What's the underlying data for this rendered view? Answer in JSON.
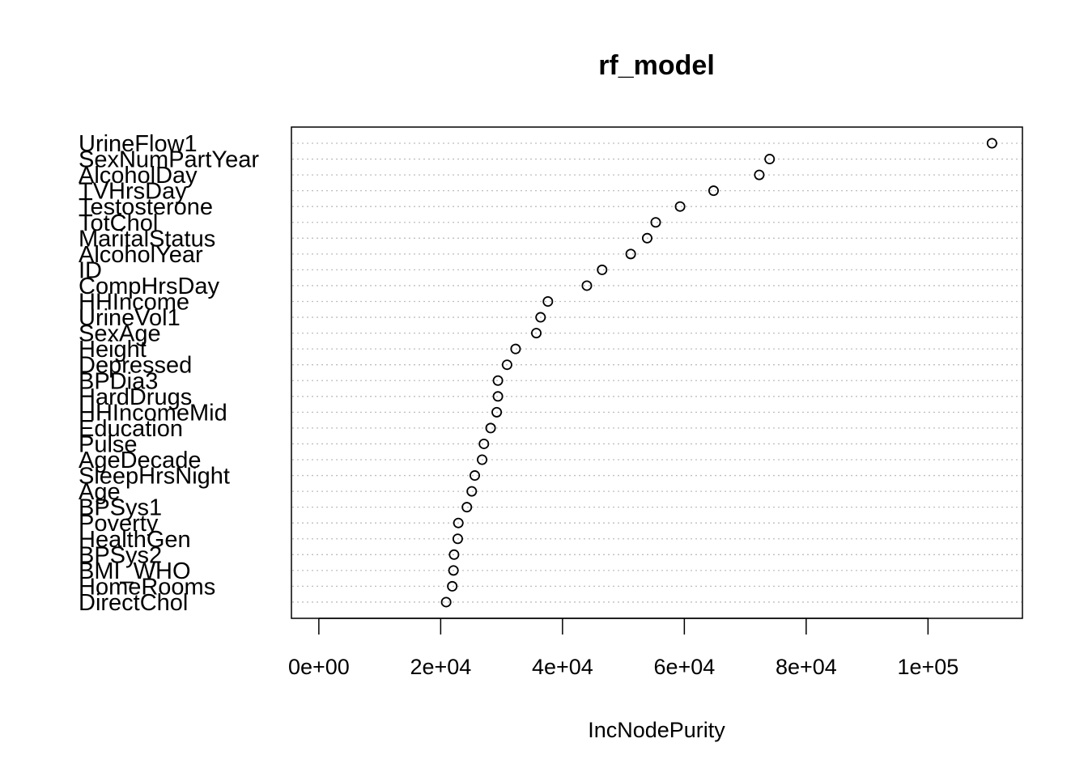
{
  "chart_data": {
    "type": "scatter",
    "title": "rf_model",
    "xlabel": "IncNodePurity",
    "ylabel": "",
    "xlim": [
      -4500,
      115500
    ],
    "xticks": [
      "0e+00",
      "2e+04",
      "4e+04",
      "6e+04",
      "8e+04",
      "1e+05"
    ],
    "xtick_values": [
      0,
      20000,
      40000,
      60000,
      80000,
      100000
    ],
    "grid": "dotted horizontal lines",
    "legend": "none",
    "point_style": "open circle",
    "colors": {
      "marker": "#000000",
      "grid": "#bebebe",
      "frame": "#000000"
    },
    "variables": [
      "UrineFlow1",
      "SexNumPartYear",
      "AlcoholDay",
      "TVHrsDay",
      "Testosterone",
      "TotChol",
      "MaritalStatus",
      "AlcoholYear",
      "ID",
      "CompHrsDay",
      "HHIncome",
      "UrineVol1",
      "SexAge",
      "Height",
      "Depressed",
      "BPDia3",
      "HardDrugs",
      "HHIncomeMid",
      "Education",
      "Pulse",
      "AgeDecade",
      "SleepHrsNight",
      "Age",
      "BPSys1",
      "Poverty",
      "HealthGen",
      "BPSys2",
      "BMI_WHO",
      "HomeRooms",
      "DirectChol"
    ],
    "values": [
      110500,
      74000,
      72300,
      64800,
      59300,
      55300,
      53900,
      51200,
      46500,
      44000,
      37600,
      36400,
      35700,
      32300,
      30900,
      29400,
      29400,
      29200,
      28200,
      27100,
      26800,
      25600,
      25100,
      24300,
      22900,
      22800,
      22200,
      22100,
      21900,
      20900
    ]
  }
}
